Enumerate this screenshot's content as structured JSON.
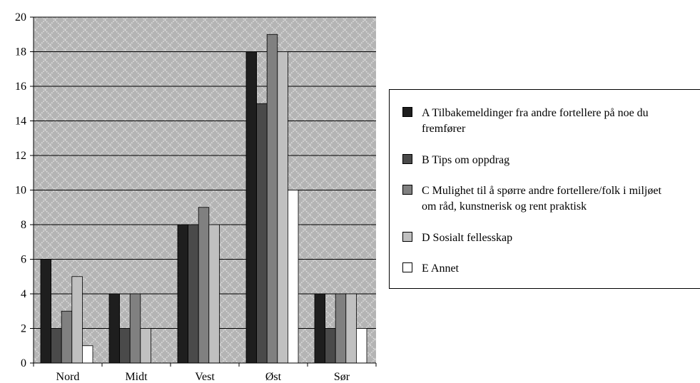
{
  "chart_data": {
    "type": "bar",
    "categories": [
      "Nord",
      "Midt",
      "Vest",
      "Øst",
      "Sør"
    ],
    "series": [
      {
        "name": "A  Tilbakemeldinger fra andre fortellere på noe du fremfører",
        "color": "#1e1e1e",
        "values": [
          6,
          4,
          8,
          18,
          4
        ]
      },
      {
        "name": "B  Tips om oppdrag",
        "color": "#4a4a4a",
        "values": [
          2,
          2,
          8,
          15,
          2
        ]
      },
      {
        "name": "C  Mulighet til å spørre andre fortellere/folk i miljøet om råd, kunstnerisk og rent praktisk",
        "color": "#808080",
        "values": [
          3,
          4,
          9,
          19,
          4
        ]
      },
      {
        "name": "D  Sosialt fellesskap",
        "color": "#c0c0c0",
        "values": [
          5,
          2,
          8,
          18,
          4
        ]
      },
      {
        "name": "E  Annet",
        "color": "#ffffff",
        "values": [
          1,
          0,
          0,
          10,
          2
        ]
      }
    ],
    "yticks": [
      "0",
      "2",
      "4",
      "6",
      "8",
      "10",
      "12",
      "14",
      "16",
      "18",
      "20"
    ],
    "ylim": [
      0,
      20
    ],
    "grid": true,
    "plot_background": "#c0c0c0",
    "legend_position": "right"
  }
}
